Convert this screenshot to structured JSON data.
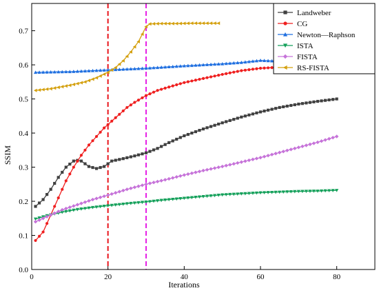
{
  "chart_data": {
    "type": "line",
    "title": "",
    "xlabel": "Iterations",
    "ylabel": "SSIM",
    "xlim": [
      0,
      90
    ],
    "ylim": [
      0.0,
      0.78
    ],
    "x_ticks": [
      0,
      20,
      40,
      60,
      80
    ],
    "x_tick_labels": [
      "0",
      "20",
      "40",
      "60",
      "80"
    ],
    "y_ticks": [
      0.0,
      0.1,
      0.2,
      0.3,
      0.4,
      0.5,
      0.6,
      0.7
    ],
    "y_tick_labels": [
      "0.0",
      "0.1",
      "0.2",
      "0.3",
      "0.4",
      "0.5",
      "0.6",
      "0.7"
    ],
    "grid": false,
    "legend_position": "top-right",
    "vlines": [
      {
        "x": 20,
        "color": "#e8141b",
        "style": "dashed"
      },
      {
        "x": 30,
        "color": "#e61fe6",
        "style": "dashed"
      }
    ],
    "series": [
      {
        "name": "Landweber",
        "color": "#404040",
        "marker": "square",
        "points": [
          [
            1,
            0.185
          ],
          [
            3,
            0.205
          ],
          [
            5,
            0.235
          ],
          [
            7,
            0.27
          ],
          [
            9,
            0.3
          ],
          [
            11,
            0.318
          ],
          [
            12,
            0.32
          ],
          [
            13,
            0.318
          ],
          [
            15,
            0.302
          ],
          [
            17,
            0.296
          ],
          [
            19,
            0.302
          ],
          [
            21,
            0.318
          ],
          [
            24,
            0.325
          ],
          [
            27,
            0.333
          ],
          [
            30,
            0.342
          ],
          [
            33,
            0.355
          ],
          [
            36,
            0.372
          ],
          [
            40,
            0.392
          ],
          [
            45,
            0.412
          ],
          [
            50,
            0.43
          ],
          [
            55,
            0.447
          ],
          [
            60,
            0.462
          ],
          [
            65,
            0.475
          ],
          [
            70,
            0.485
          ],
          [
            75,
            0.493
          ],
          [
            80,
            0.5
          ]
        ]
      },
      {
        "name": "CG",
        "color": "#ef1f1f",
        "marker": "circle",
        "points": [
          [
            1,
            0.085
          ],
          [
            3,
            0.11
          ],
          [
            5,
            0.16
          ],
          [
            7,
            0.21
          ],
          [
            9,
            0.26
          ],
          [
            11,
            0.3
          ],
          [
            13,
            0.335
          ],
          [
            15,
            0.365
          ],
          [
            17,
            0.39
          ],
          [
            19,
            0.415
          ],
          [
            21,
            0.435
          ],
          [
            23,
            0.455
          ],
          [
            25,
            0.475
          ],
          [
            27,
            0.49
          ],
          [
            30,
            0.51
          ],
          [
            33,
            0.525
          ],
          [
            36,
            0.535
          ],
          [
            40,
            0.548
          ],
          [
            45,
            0.56
          ],
          [
            50,
            0.572
          ],
          [
            55,
            0.583
          ],
          [
            60,
            0.59
          ],
          [
            65,
            0.593
          ],
          [
            70,
            0.592
          ],
          [
            75,
            0.59
          ],
          [
            78,
            0.588
          ]
        ]
      },
      {
        "name": "Newton—Raphson",
        "color": "#1f6fe0",
        "marker": "triangle-up",
        "points": [
          [
            1,
            0.578
          ],
          [
            10,
            0.58
          ],
          [
            20,
            0.585
          ],
          [
            30,
            0.59
          ],
          [
            40,
            0.597
          ],
          [
            50,
            0.603
          ],
          [
            55,
            0.607
          ],
          [
            60,
            0.613
          ],
          [
            64,
            0.611
          ],
          [
            68,
            0.61
          ]
        ]
      },
      {
        "name": "ISTA",
        "color": "#14a05a",
        "marker": "triangle-down",
        "points": [
          [
            1,
            0.148
          ],
          [
            4,
            0.158
          ],
          [
            8,
            0.168
          ],
          [
            12,
            0.176
          ],
          [
            16,
            0.182
          ],
          [
            20,
            0.187
          ],
          [
            25,
            0.193
          ],
          [
            30,
            0.198
          ],
          [
            35,
            0.204
          ],
          [
            40,
            0.209
          ],
          [
            45,
            0.214
          ],
          [
            50,
            0.219
          ],
          [
            55,
            0.222
          ],
          [
            60,
            0.225
          ],
          [
            65,
            0.227
          ],
          [
            70,
            0.229
          ],
          [
            75,
            0.23
          ],
          [
            80,
            0.232
          ]
        ]
      },
      {
        "name": "FISTA",
        "color": "#c673d9",
        "marker": "diamond",
        "points": [
          [
            1,
            0.14
          ],
          [
            4,
            0.155
          ],
          [
            8,
            0.175
          ],
          [
            12,
            0.19
          ],
          [
            16,
            0.205
          ],
          [
            20,
            0.218
          ],
          [
            25,
            0.235
          ],
          [
            30,
            0.25
          ],
          [
            35,
            0.263
          ],
          [
            40,
            0.277
          ],
          [
            45,
            0.29
          ],
          [
            50,
            0.302
          ],
          [
            55,
            0.315
          ],
          [
            60,
            0.328
          ],
          [
            65,
            0.343
          ],
          [
            70,
            0.358
          ],
          [
            75,
            0.373
          ],
          [
            80,
            0.39
          ]
        ]
      },
      {
        "name": "RS-FISTA",
        "color": "#d4a00e",
        "marker": "triangle-left",
        "points": [
          [
            1,
            0.525
          ],
          [
            5,
            0.53
          ],
          [
            10,
            0.54
          ],
          [
            14,
            0.55
          ],
          [
            17,
            0.562
          ],
          [
            20,
            0.578
          ],
          [
            22,
            0.592
          ],
          [
            24,
            0.612
          ],
          [
            26,
            0.638
          ],
          [
            28,
            0.668
          ],
          [
            30,
            0.712
          ],
          [
            31,
            0.72
          ],
          [
            34,
            0.721
          ],
          [
            38,
            0.721
          ],
          [
            42,
            0.722
          ],
          [
            46,
            0.722
          ],
          [
            49,
            0.722
          ]
        ]
      }
    ]
  }
}
